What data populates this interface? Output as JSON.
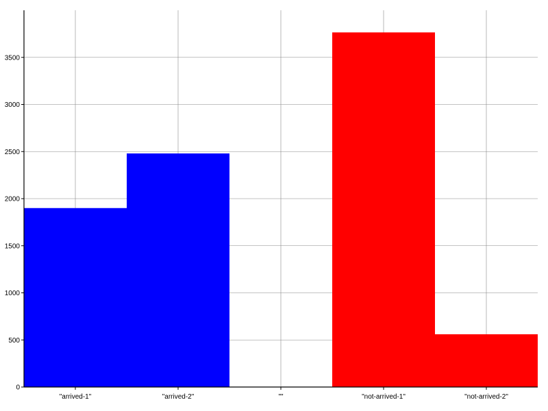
{
  "chart_data": {
    "type": "bar",
    "title": "",
    "xlabel": "",
    "ylabel": "",
    "categories": [
      "\"arrived-1\"",
      "\"arrived-2\"",
      "\"\"",
      "\"not-arrived-1\"",
      "\"not-arrived-2\""
    ],
    "values": [
      1900,
      2480,
      0,
      3765,
      560
    ],
    "colors": [
      "#0000ff",
      "#0000ff",
      "#ffffff",
      "#ff0000",
      "#ff0000"
    ],
    "ylim": [
      0,
      4000
    ],
    "yticks": [
      0,
      500,
      1000,
      1500,
      2000,
      2500,
      3000,
      3500
    ],
    "grid": true,
    "legend": "none"
  }
}
